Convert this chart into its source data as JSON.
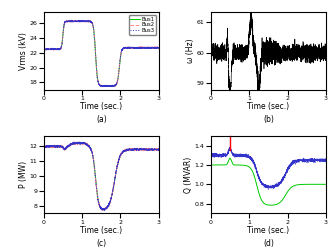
{
  "subplot_labels": [
    "(a)",
    "(b)",
    "(c)",
    "(d)"
  ],
  "xlabel": "Time (sec.)",
  "ylabel_a": "Vrms (kV)",
  "ylabel_b": "ω (Hz)",
  "ylabel_c": "P (MW)",
  "ylabel_d": "Q (MVAR)",
  "xlim": [
    0,
    3
  ],
  "ylim_a": [
    17,
    27.5
  ],
  "ylim_b": [
    58.8,
    61.3
  ],
  "ylim_c": [
    7.5,
    12.7
  ],
  "ylim_d": [
    0.7,
    1.5
  ],
  "yticks_a": [
    18,
    20,
    22,
    24,
    26
  ],
  "yticks_b": [
    59,
    60,
    61
  ],
  "yticks_c": [
    8,
    9,
    10,
    11,
    12
  ],
  "yticks_d": [
    0.8,
    1.0,
    1.2,
    1.4
  ],
  "xticks": [
    0,
    1,
    2,
    3
  ],
  "legend_labels": [
    "Bus1",
    "Bus2",
    "Bus3"
  ],
  "bus1_color": "#00cc00",
  "bus2_color": "#ff8888",
  "bus3_color": "#3333cc",
  "noise_seed": 42
}
